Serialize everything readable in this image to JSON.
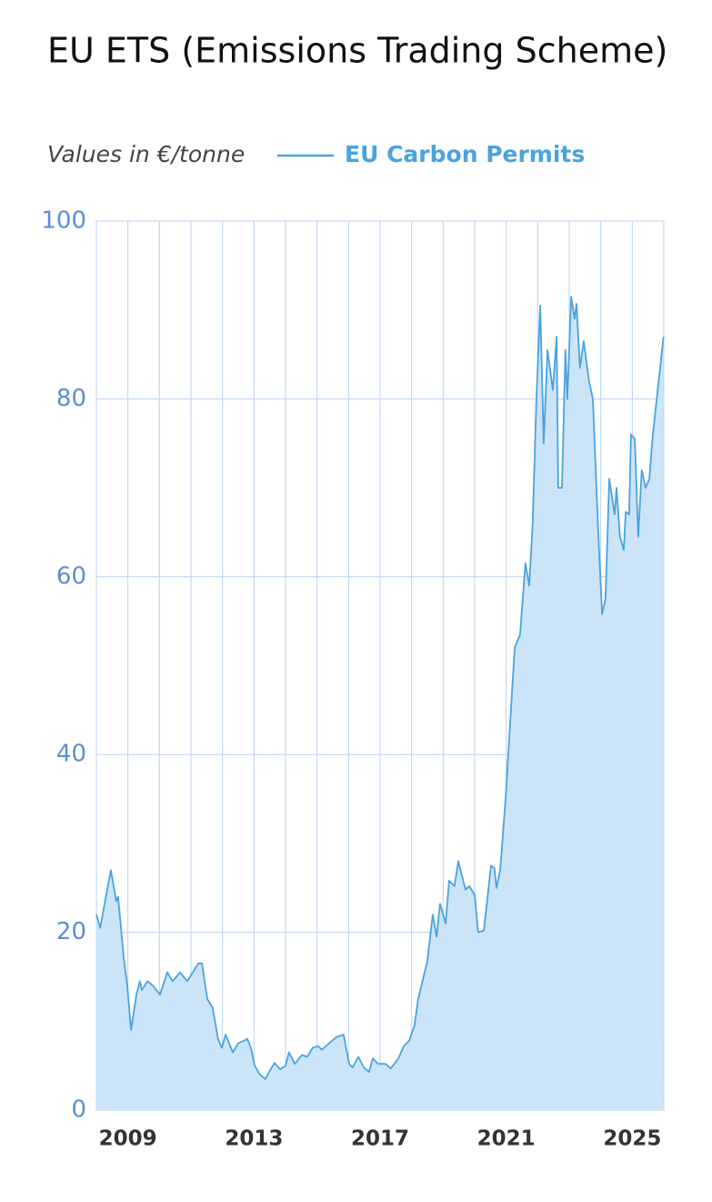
{
  "chart_data": {
    "type": "area",
    "title": "EU ETS (Emissions Trading Scheme)",
    "subtitle": "Values in €/tonne",
    "x": [
      2008.0,
      2008.12,
      2008.46,
      2008.63,
      2008.69,
      2008.87,
      2008.98,
      2009.1,
      2009.27,
      2009.38,
      2009.44,
      2009.62,
      2009.79,
      2010.02,
      2010.25,
      2010.42,
      2010.65,
      2010.88,
      2011.06,
      2011.23,
      2011.35,
      2011.52,
      2011.69,
      2011.86,
      2011.98,
      2012.1,
      2012.33,
      2012.5,
      2012.79,
      2012.9,
      2013.02,
      2013.19,
      2013.36,
      2013.48,
      2013.65,
      2013.83,
      2014.0,
      2014.11,
      2014.29,
      2014.52,
      2014.69,
      2014.86,
      2015.04,
      2015.15,
      2015.38,
      2015.61,
      2015.84,
      2016.02,
      2016.13,
      2016.31,
      2016.48,
      2016.65,
      2016.77,
      2016.94,
      2017.17,
      2017.34,
      2017.58,
      2017.75,
      2017.92,
      2018.09,
      2018.21,
      2018.38,
      2018.5,
      2018.67,
      2018.79,
      2018.9,
      2019.08,
      2019.19,
      2019.36,
      2019.48,
      2019.71,
      2019.83,
      2020.0,
      2020.11,
      2020.29,
      2020.52,
      2020.63,
      2020.69,
      2020.81,
      2020.98,
      2021.15,
      2021.27,
      2021.44,
      2021.61,
      2021.73,
      2021.84,
      2021.96,
      2022.08,
      2022.19,
      2022.31,
      2022.48,
      2022.6,
      2022.65,
      2022.77,
      2022.88,
      2022.94,
      2023.06,
      2023.17,
      2023.23,
      2023.34,
      2023.46,
      2023.63,
      2023.75,
      2023.92,
      2024.04,
      2024.15,
      2024.27,
      2024.44,
      2024.5,
      2024.61,
      2024.73,
      2024.79,
      2024.9,
      2024.96,
      2025.08,
      2025.19,
      2025.3,
      2025.42,
      2025.54,
      2025.65,
      2025.99
    ],
    "series": [
      {
        "name": "EU Carbon Permits",
        "color": "#4aa3df",
        "fill": "#cce4f7",
        "values": [
          22,
          20.5,
          27,
          23.5,
          24,
          17,
          14,
          9,
          13,
          14.5,
          13.5,
          14.5,
          14,
          13,
          15.5,
          14.5,
          15.5,
          14.5,
          15.5,
          16.5,
          16.5,
          12.5,
          11.5,
          8,
          7,
          8.5,
          6.5,
          7.5,
          8,
          7,
          5,
          4,
          3.5,
          4.3,
          5.3,
          4.6,
          5,
          6.5,
          5.2,
          6.2,
          6,
          7,
          7.2,
          6.8,
          7.5,
          8.2,
          8.5,
          5.2,
          4.8,
          6,
          4.8,
          4.3,
          5.8,
          5.2,
          5.2,
          4.7,
          5.8,
          7.2,
          7.8,
          9.5,
          12.5,
          15,
          16.8,
          22,
          19.5,
          23.2,
          21,
          25.8,
          25.2,
          28,
          24.8,
          25.2,
          24.2,
          20,
          20.2,
          27.5,
          27.2,
          25,
          27,
          35,
          45,
          52,
          53.5,
          61.5,
          59,
          66,
          80,
          90.5,
          75,
          85.5,
          81,
          87,
          70,
          70,
          85.5,
          80,
          91.5,
          89,
          90.7,
          83.5,
          86.5,
          82,
          80,
          65,
          55.8,
          57.5,
          71,
          67,
          70,
          64.5,
          63,
          67.3,
          67,
          76,
          75.5,
          64.5,
          72,
          70,
          71,
          76,
          87
        ]
      }
    ],
    "xlim": [
      2008,
      2026
    ],
    "xticks": [
      2009,
      2013,
      2017,
      2021,
      2025
    ],
    "xgrid": [
      2009,
      2010,
      2011,
      2012,
      2013,
      2014,
      2015,
      2016,
      2017,
      2018,
      2019,
      2020,
      2021,
      2022,
      2023,
      2024,
      2025
    ],
    "ylim": [
      0,
      100
    ],
    "yticks": [
      0,
      20,
      40,
      60,
      80,
      100
    ],
    "grid": true
  }
}
